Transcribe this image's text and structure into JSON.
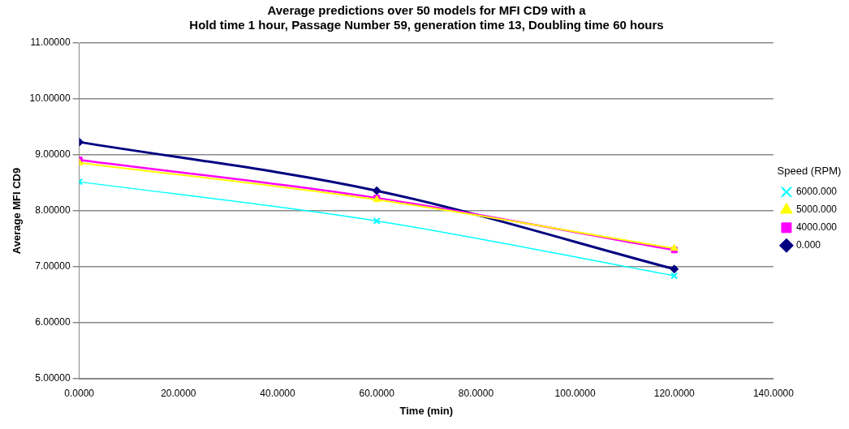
{
  "chart_data": {
    "type": "line",
    "title": [
      "Average predictions over 50 models for MFI CD9 with a",
      "Hold time 1 hour, Passage Number 59, generation time 13, Doubling time 60 hours"
    ],
    "xlabel": "Time (min)",
    "ylabel": "Average MFI CD9",
    "legend_title": "Speed (RPM)",
    "legend": "right",
    "grid": "y",
    "x": [
      0,
      60,
      120
    ],
    "series": [
      {
        "name": "0.000",
        "color": "#000080",
        "marker": "diamond",
        "values": [
          9.23,
          8.36,
          6.96
        ]
      },
      {
        "name": "4000.000",
        "color": "#ff00ff",
        "marker": "square",
        "values": [
          8.91,
          8.23,
          7.3
        ]
      },
      {
        "name": "5000.000",
        "color": "#ffff00",
        "marker": "triangle",
        "values": [
          8.86,
          8.2,
          7.33
        ]
      },
      {
        "name": "6000.000",
        "color": "#00ffff",
        "marker": "cross",
        "values": [
          8.52,
          7.82,
          6.84
        ]
      }
    ],
    "xlim": [
      0,
      140
    ],
    "xticks": [
      {
        "value": 0,
        "label": "0.0000"
      },
      {
        "value": 20,
        "label": "20.0000"
      },
      {
        "value": 40,
        "label": "40.0000"
      },
      {
        "value": 60,
        "label": "60.0000"
      },
      {
        "value": 80,
        "label": "80.0000"
      },
      {
        "value": 100,
        "label": "100.0000"
      },
      {
        "value": 120,
        "label": "120.0000"
      },
      {
        "value": 140,
        "label": "140.0000"
      }
    ],
    "ylim": [
      5,
      11
    ],
    "yticks": [
      {
        "value": 5,
        "label": "5.00000"
      },
      {
        "value": 6,
        "label": "6.00000"
      },
      {
        "value": 7,
        "label": "7.00000"
      },
      {
        "value": 8,
        "label": "8.00000"
      },
      {
        "value": 9,
        "label": "9.00000"
      },
      {
        "value": 10,
        "label": "10.00000"
      },
      {
        "value": 11,
        "label": "11.00000"
      }
    ]
  }
}
